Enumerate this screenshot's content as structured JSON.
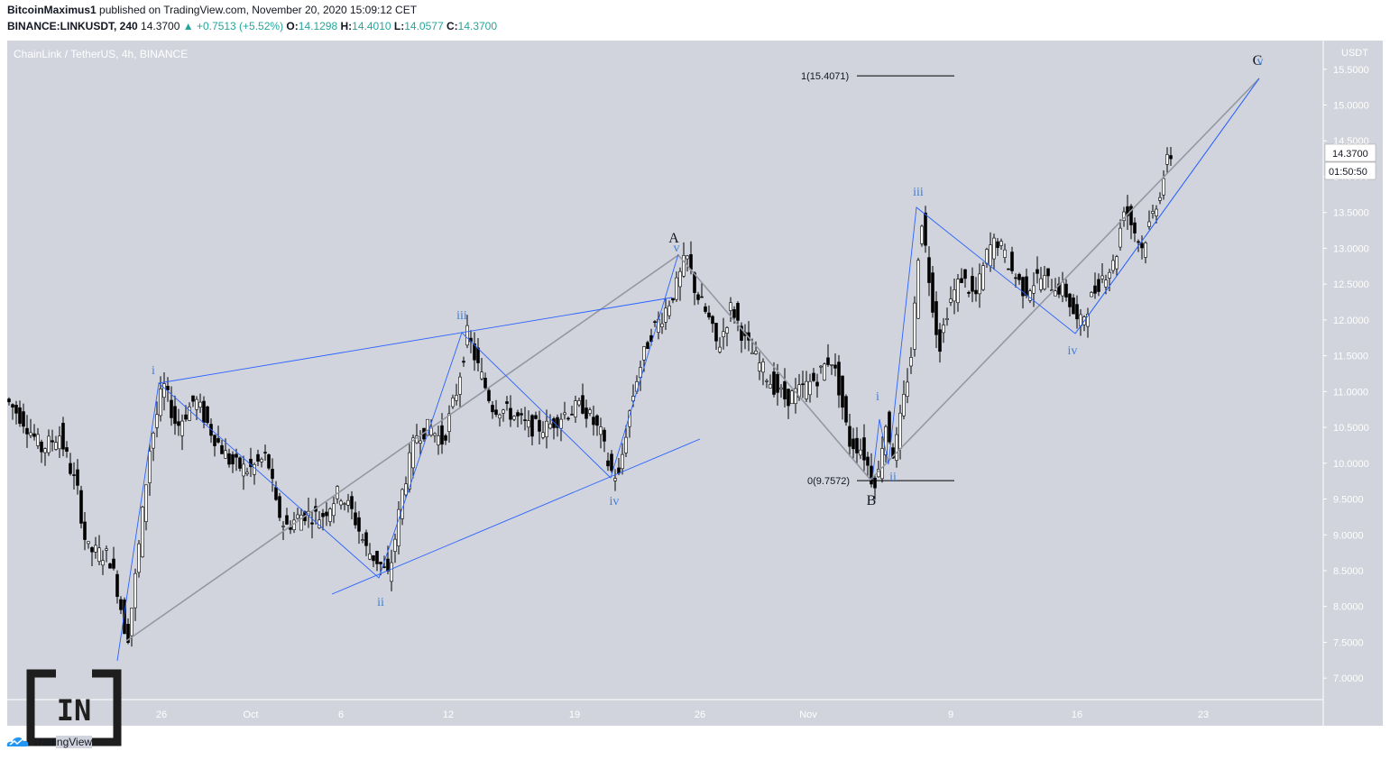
{
  "header": {
    "author": "BitcoinMaximus1",
    "published": "published on TradingView.com, November 20, 2020 15:09:12 CET",
    "symbol": "BINANCE:LINKUSDT, 240",
    "last": "14.3700",
    "change": "+0.7513 (+5.52%)",
    "o_label": "O:",
    "o": "14.1298",
    "h_label": "H:",
    "h": "14.4010",
    "l_label": "L:",
    "l": "14.0577",
    "c_label": "C:",
    "c": "14.3700"
  },
  "watermark": {
    "logo_text": "IN"
  },
  "footer": {
    "brand": "TradingView"
  },
  "colors": {
    "background": "#d1d4dc",
    "candle": "#000000",
    "wave_blue": "#2962ff",
    "wave_gray": "#9598a1",
    "label_blue": "#3d7fd9",
    "price_tag": "#ffffff"
  },
  "chart_data": {
    "type": "candlestick",
    "title": "ChainLink / TetherUS, 4h, BINANCE",
    "price_axis_unit": "USDT",
    "ylim": [
      6.7,
      15.9
    ],
    "y_ticks": [
      "15.5000",
      "15.0000",
      "14.5000",
      "14.0000",
      "13.5000",
      "13.0000",
      "12.5000",
      "12.0000",
      "11.5000",
      "11.0000",
      "10.5000",
      "10.0000",
      "9.5000",
      "9.0000",
      "8.5000",
      "8.0000",
      "7.5000",
      "7.0000"
    ],
    "x_ticks": [
      "26",
      "Oct",
      "6",
      "12",
      "19",
      "26",
      "Nov",
      "9",
      "16",
      "23"
    ],
    "last_price": "14.3700",
    "countdown": "01:50:50",
    "price_path": [
      [
        0,
        10.9
      ],
      [
        20,
        10.6
      ],
      [
        40,
        10.2
      ],
      [
        60,
        10.4
      ],
      [
        80,
        9.6
      ],
      [
        90,
        8.8
      ],
      [
        115,
        8.7
      ],
      [
        125,
        8.2
      ],
      [
        135,
        7.5
      ],
      [
        145,
        8.5
      ],
      [
        160,
        10.2
      ],
      [
        175,
        11.1
      ],
      [
        190,
        10.5
      ],
      [
        210,
        10.9
      ],
      [
        230,
        10.4
      ],
      [
        250,
        10.0
      ],
      [
        270,
        9.9
      ],
      [
        290,
        10.1
      ],
      [
        300,
        9.4
      ],
      [
        310,
        9.1
      ],
      [
        330,
        9.3
      ],
      [
        350,
        9.25
      ],
      [
        370,
        9.6
      ],
      [
        385,
        9.3
      ],
      [
        400,
        8.8
      ],
      [
        415,
        8.6
      ],
      [
        425,
        8.4
      ],
      [
        440,
        9.6
      ],
      [
        455,
        10.4
      ],
      [
        470,
        10.5
      ],
      [
        485,
        10.3
      ],
      [
        500,
        11.0
      ],
      [
        512,
        11.8
      ],
      [
        525,
        11.3
      ],
      [
        540,
        10.8
      ],
      [
        560,
        10.7
      ],
      [
        580,
        10.5
      ],
      [
        600,
        10.5
      ],
      [
        620,
        10.7
      ],
      [
        640,
        10.8
      ],
      [
        660,
        10.4
      ],
      [
        670,
        9.9
      ],
      [
        680,
        9.8
      ],
      [
        690,
        10.6
      ],
      [
        700,
        11.2
      ],
      [
        715,
        11.8
      ],
      [
        730,
        12.1
      ],
      [
        745,
        12.5
      ],
      [
        755,
        12.9
      ],
      [
        765,
        12.4
      ],
      [
        780,
        12.0
      ],
      [
        790,
        11.6
      ],
      [
        805,
        12.2
      ],
      [
        820,
        11.7
      ],
      [
        835,
        11.4
      ],
      [
        850,
        11.1
      ],
      [
        865,
        10.9
      ],
      [
        880,
        11.0
      ],
      [
        900,
        11.2
      ],
      [
        915,
        11.5
      ],
      [
        925,
        11.0
      ],
      [
        935,
        10.3
      ],
      [
        950,
        10.2
      ],
      [
        960,
        9.8
      ],
      [
        967,
        9.76
      ],
      [
        975,
        10.6
      ],
      [
        985,
        10.1
      ],
      [
        995,
        10.8
      ],
      [
        1005,
        11.6
      ],
      [
        1015,
        13.5
      ],
      [
        1025,
        12.5
      ],
      [
        1035,
        11.6
      ],
      [
        1045,
        12.2
      ],
      [
        1060,
        12.6
      ],
      [
        1075,
        12.3
      ],
      [
        1090,
        13.0
      ],
      [
        1100,
        13.1
      ],
      [
        1115,
        12.7
      ],
      [
        1130,
        12.4
      ],
      [
        1145,
        12.6
      ],
      [
        1160,
        12.5
      ],
      [
        1175,
        12.4
      ],
      [
        1190,
        11.9
      ],
      [
        1200,
        12.2
      ],
      [
        1215,
        12.6
      ],
      [
        1230,
        12.8
      ],
      [
        1240,
        13.6
      ],
      [
        1250,
        13.3
      ],
      [
        1260,
        13.0
      ],
      [
        1270,
        13.4
      ],
      [
        1280,
        13.8
      ],
      [
        1290,
        14.3
      ]
    ],
    "fib_levels": [
      {
        "label": "1(15.4071)",
        "value": 15.4071
      },
      {
        "label": "0(9.7572)",
        "value": 9.7572
      }
    ],
    "wave_labels_major": [
      "A",
      "B",
      "C"
    ],
    "wave_labels_minor": [
      "i",
      "ii",
      "iii",
      "iv",
      "v"
    ]
  }
}
